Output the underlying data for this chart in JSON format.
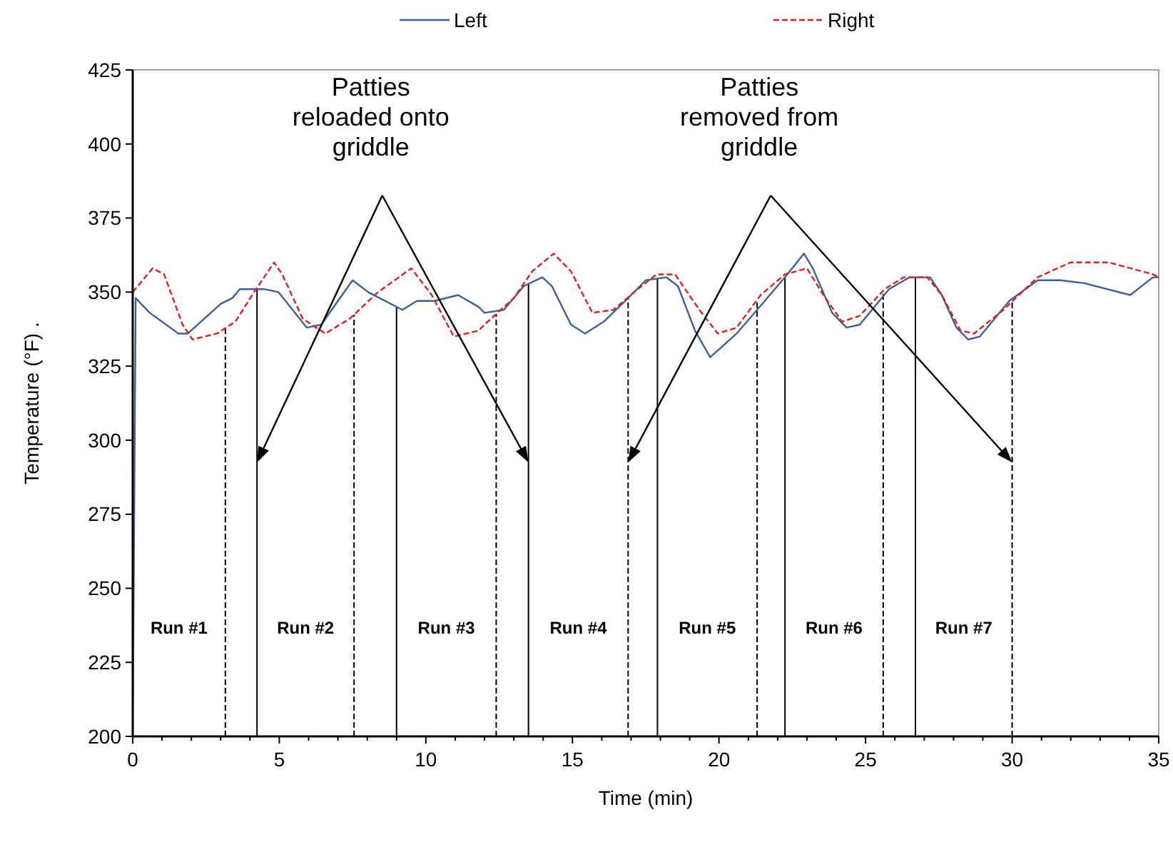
{
  "chart_data": {
    "type": "line",
    "xlabel": "Time (min)",
    "ylabel": "Temperature (°F) .",
    "xlim": [
      0,
      35
    ],
    "xticks": [
      0,
      {
        "value": 1,
        "label": null
      },
      {
        "value": 2,
        "label": null
      },
      {
        "value": 3,
        "label": null
      },
      {
        "value": 4,
        "label": null
      },
      5,
      {
        "value": 6,
        "label": null
      },
      {
        "value": 7,
        "label": null
      },
      {
        "value": 8,
        "label": null
      },
      {
        "value": 9,
        "label": null
      },
      10,
      {
        "value": 11,
        "label": null
      },
      {
        "value": 12,
        "label": null
      },
      {
        "value": 13,
        "label": null
      },
      {
        "value": 14,
        "label": null
      },
      15,
      {
        "value": 16,
        "label": null
      },
      {
        "value": 17,
        "label": null
      },
      {
        "value": 18,
        "label": null
      },
      {
        "value": 19,
        "label": null
      },
      20,
      {
        "value": 21,
        "label": null
      },
      {
        "value": 22,
        "label": null
      },
      {
        "value": 23,
        "label": null
      },
      {
        "value": 24,
        "label": null
      },
      25,
      {
        "value": 26,
        "label": null
      },
      {
        "value": 27,
        "label": null
      },
      {
        "value": 28,
        "label": null
      },
      {
        "value": 29,
        "label": null
      },
      30,
      {
        "value": 31,
        "label": null
      },
      {
        "value": 32,
        "label": null
      },
      {
        "value": 33,
        "label": null
      },
      {
        "value": 34,
        "label": null
      },
      35
    ],
    "ylim": [
      200,
      425
    ],
    "yticks": [
      200,
      225,
      250,
      275,
      300,
      325,
      350,
      375,
      400,
      425
    ],
    "grid": false,
    "legend": "top",
    "series": [
      {
        "name": "Left",
        "color": "#3d5f9a",
        "line_style": "solid",
        "x": [
          0,
          0.1,
          0.58,
          1.56,
          1.88,
          3.0,
          3.4,
          3.65,
          4.48,
          4.97,
          5.94,
          6.43,
          7.5,
          8.03,
          9.2,
          9.69,
          10.3,
          11.1,
          11.8,
          12.0,
          12.66,
          13.34,
          13.97,
          14.3,
          14.95,
          15.43,
          16.07,
          16.9,
          17.5,
          18.2,
          18.6,
          19.18,
          19.7,
          20.6,
          21.3,
          22.25,
          22.9,
          23.2,
          23.86,
          24.35,
          24.8,
          25.8,
          26.5,
          27.2,
          27.6,
          28.1,
          28.5,
          28.9,
          29.9,
          30.87,
          31.65,
          32.47,
          34.03,
          34.8,
          35
        ],
        "values": [
          200,
          348,
          343,
          336,
          336,
          346,
          348,
          351,
          351,
          350,
          338,
          339,
          354,
          350,
          344,
          347,
          347,
          349,
          345,
          343,
          344,
          352,
          355,
          352,
          339,
          336,
          340,
          348,
          354,
          355,
          352,
          337,
          328,
          336,
          344,
          355,
          363,
          358,
          343,
          338,
          339,
          351,
          355,
          355,
          349,
          338,
          334,
          335,
          347,
          354,
          354,
          353,
          349,
          355,
          355
        ]
      },
      {
        "name": "Right",
        "color": "#e02020",
        "line_style": "dashed",
        "x": [
          0,
          0.68,
          1.07,
          1.7,
          2.04,
          2.87,
          3.5,
          4.14,
          4.82,
          5.1,
          5.8,
          6.57,
          7.4,
          8.37,
          9.5,
          10.2,
          10.95,
          11.8,
          12.0,
          13.0,
          13.63,
          14.36,
          14.95,
          15.68,
          16.4,
          17.23,
          17.87,
          18.5,
          19.33,
          19.96,
          20.6,
          21.42,
          22.25,
          23.0,
          23.56,
          24.2,
          24.8,
          25.65,
          26.3,
          27.1,
          27.6,
          28.24,
          28.7,
          29.7,
          30.87,
          31.99,
          33.3,
          34.8,
          35
        ],
        "values": [
          350,
          358,
          356,
          339,
          334,
          336,
          340,
          350,
          360,
          356,
          341,
          336,
          341,
          350,
          358,
          349,
          335,
          337,
          339,
          348,
          357,
          363,
          357,
          343,
          344,
          351,
          356,
          356,
          344,
          336,
          338,
          349,
          356,
          358,
          349,
          340,
          342,
          351,
          355,
          355,
          349,
          337,
          336,
          344,
          355,
          360,
          360,
          356,
          355
        ]
      }
    ],
    "ref_lines": [
      {
        "axis": "x",
        "value": 3.16,
        "line_style": "dashed",
        "color": "#000000"
      },
      {
        "axis": "x",
        "value": 4.24,
        "line_style": "solid",
        "color": "#000000"
      },
      {
        "axis": "x",
        "value": 7.55,
        "line_style": "dashed",
        "color": "#000000"
      },
      {
        "axis": "x",
        "value": 9.0,
        "line_style": "solid",
        "color": "#000000"
      },
      {
        "axis": "x",
        "value": 12.4,
        "line_style": "dashed",
        "color": "#000000"
      },
      {
        "axis": "x",
        "value": 13.5,
        "line_style": "solid",
        "color": "#000000"
      },
      {
        "axis": "x",
        "value": 16.9,
        "line_style": "dashed",
        "color": "#000000"
      },
      {
        "axis": "x",
        "value": 17.9,
        "line_style": "solid",
        "color": "#000000"
      },
      {
        "axis": "x",
        "value": 21.3,
        "line_style": "dashed",
        "color": "#000000"
      },
      {
        "axis": "x",
        "value": 22.25,
        "line_style": "solid",
        "color": "#000000"
      },
      {
        "axis": "x",
        "value": 25.6,
        "line_style": "dashed",
        "color": "#000000"
      },
      {
        "axis": "x",
        "value": 26.7,
        "line_style": "solid",
        "color": "#000000"
      },
      {
        "axis": "x",
        "value": 30.0,
        "line_style": "dashed",
        "color": "#000000"
      }
    ],
    "annotations": [
      "Run #1",
      "Run #2",
      "Run #3",
      "Run #4",
      "Run #5",
      "Run #6",
      "Run #7",
      "Patties\nreloaded onto\ngriddle",
      "Patties\nremoved from\ngriddle"
    ]
  }
}
